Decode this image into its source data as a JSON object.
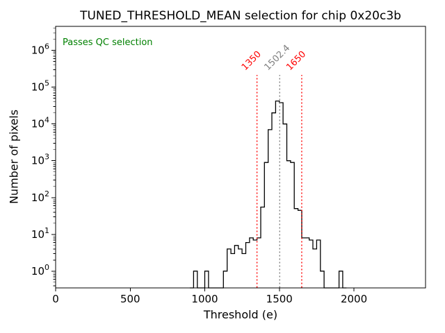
{
  "chart_data": {
    "type": "histogram-step",
    "title": "TUNED_THRESHOLD_MEAN selection for chip 0x20c3b",
    "xlabel": "Threshold (e)",
    "ylabel": "Number of pixels",
    "yscale": "log",
    "grid": false,
    "annotation": {
      "text": "Passes QC selection",
      "color": "#008000"
    },
    "xlim": [
      0,
      2480
    ],
    "ylim": [
      0.35,
      4500000
    ],
    "xticks": [
      0,
      500,
      1000,
      1500,
      2000
    ],
    "ytick_exponents": [
      0,
      1,
      2,
      3,
      4,
      5,
      6
    ],
    "histogram": {
      "color": "#000000",
      "bin_start": 900,
      "bin_width": 25,
      "counts": [
        0,
        1,
        0,
        0,
        1,
        0,
        0,
        0,
        0,
        1,
        4,
        3,
        5,
        4,
        3,
        6,
        8,
        7,
        8,
        55,
        900,
        7000,
        20000,
        42000,
        38000,
        10000,
        1000,
        900,
        50,
        45,
        8,
        8,
        7,
        4,
        7,
        1,
        0,
        0,
        0,
        0,
        1,
        0
      ]
    },
    "vlines": [
      {
        "x": 1350,
        "label": "1350",
        "color": "#ff0000",
        "style": "dotted"
      },
      {
        "x": 1502.4,
        "label": "1502.4",
        "color": "#808080",
        "style": "dotted"
      },
      {
        "x": 1650,
        "label": "1650",
        "color": "#ff0000",
        "style": "dotted"
      }
    ]
  }
}
